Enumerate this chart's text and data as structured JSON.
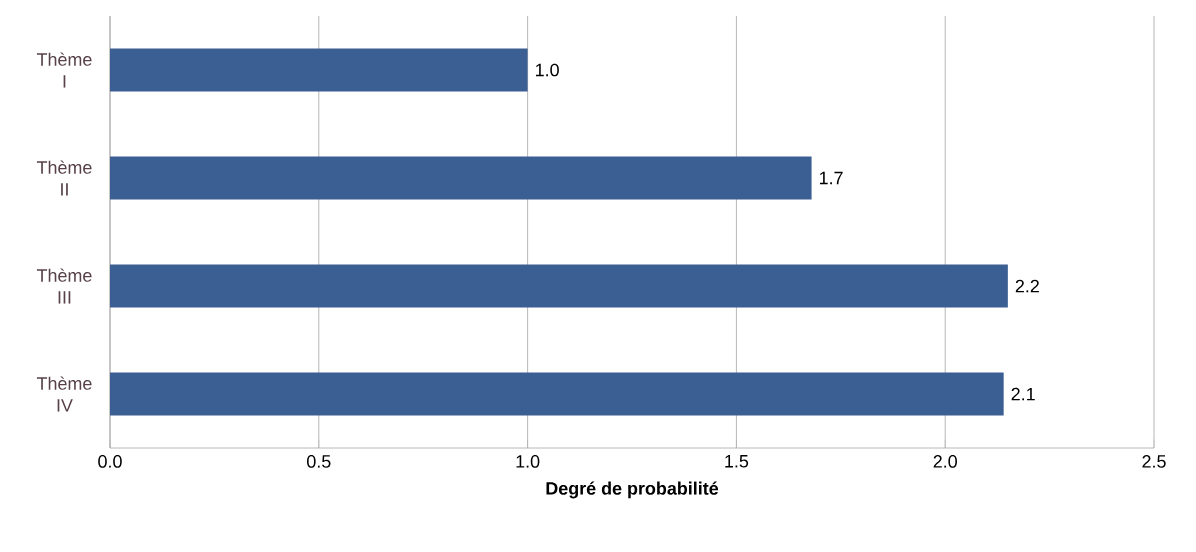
{
  "chart_data": {
    "type": "bar",
    "orientation": "horizontal",
    "categories": [
      "Thème I",
      "Thème II",
      "Thème III",
      "Thème IV"
    ],
    "values": [
      1.0,
      1.68,
      2.15,
      2.14
    ],
    "value_labels": [
      "1.0",
      "1.7",
      "2.2",
      "2.1"
    ],
    "color": "#3b5f92",
    "xlabel": "Degré de probabilité",
    "xlim": [
      0,
      2.5
    ],
    "xticks": [
      {
        "value": 0,
        "label": "0.0"
      },
      {
        "value": 0.5,
        "label": "0.5"
      },
      {
        "value": 1,
        "label": "1.0"
      },
      {
        "value": 1.5,
        "label": "1.5"
      },
      {
        "value": 2,
        "label": "2.0"
      },
      {
        "value": 2.5,
        "label": "2.5"
      }
    ],
    "grid": "x"
  }
}
